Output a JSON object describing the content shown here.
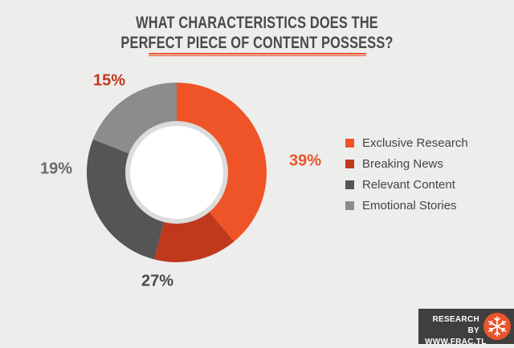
{
  "header": {
    "title_line1": "WHAT CHARACTERISTICS DOES THE",
    "title_line2": "PERFECT PIECE OF CONTENT POSSESS?"
  },
  "chart_data": {
    "type": "pie",
    "variant": "donut",
    "categories": [
      "Exclusive Research",
      "Breaking News",
      "Relevant Content",
      "Emotional Stories"
    ],
    "values": [
      39,
      15,
      27,
      19
    ],
    "labels": [
      "39%",
      "15%",
      "27%",
      "19%"
    ],
    "colors": [
      "#ef5428",
      "#c0391d",
      "#555555",
      "#8c8c8c"
    ],
    "label_colors": [
      "#e8542b",
      "#c0391d",
      "#4a4a4a",
      "#6a6a6a"
    ],
    "legend_position": "right"
  },
  "branding": {
    "line1": "RESEARCH BY",
    "line2": "WWW.FRAC.TL",
    "logo_icon": "snowflake-icon",
    "logo_color": "#e8542b"
  }
}
